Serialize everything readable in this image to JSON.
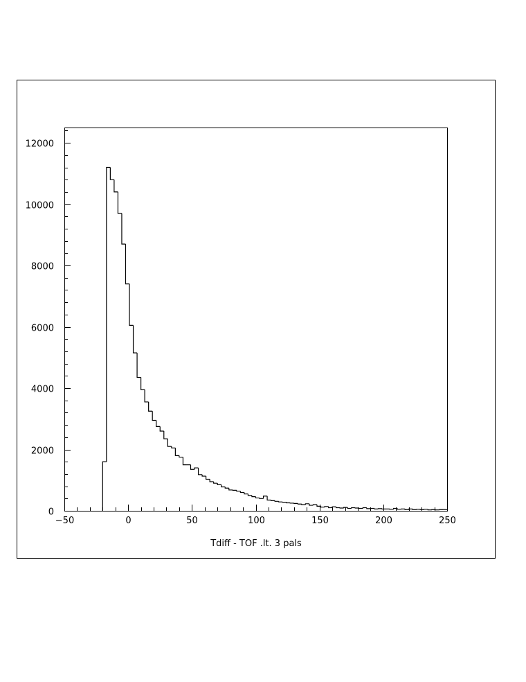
{
  "chart_data": {
    "type": "histogram",
    "title": "",
    "xlabel": "Tdiff - TOF .lt. 3 pals",
    "ylabel": "",
    "xlim": [
      -50,
      250
    ],
    "ylim": [
      0,
      12500
    ],
    "x_ticks": [
      -50,
      0,
      50,
      100,
      150,
      200,
      250
    ],
    "x_tick_labels": [
      "−50",
      "0",
      "50",
      "100",
      "150",
      "200",
      "250"
    ],
    "y_ticks": [
      0,
      2000,
      4000,
      6000,
      8000,
      10000,
      12000
    ],
    "y_tick_labels": [
      "0",
      "2000",
      "4000",
      "6000",
      "8000",
      "10000",
      "12000"
    ],
    "grid": false,
    "legend": "none",
    "bin_width": 3,
    "bin_edges_start": -20,
    "counts": [
      1600,
      11200,
      10800,
      10400,
      9700,
      8700,
      7400,
      6050,
      5150,
      4350,
      3950,
      3550,
      3250,
      2950,
      2750,
      2600,
      2350,
      2100,
      2050,
      1800,
      1750,
      1500,
      1500,
      1350,
      1400,
      1180,
      1130,
      1030,
      950,
      900,
      850,
      780,
      740,
      680,
      670,
      640,
      600,
      550,
      500,
      460,
      420,
      400,
      480,
      350,
      330,
      310,
      290,
      280,
      260,
      250,
      240,
      220,
      200,
      230,
      180,
      200,
      150,
      120,
      140,
      100,
      130,
      100,
      90,
      110,
      80,
      100,
      90,
      80,
      100,
      70,
      80,
      60,
      70,
      60,
      60,
      50,
      80,
      50,
      60,
      40,
      60,
      40,
      50,
      40,
      50,
      30,
      40,
      30,
      40,
      40
    ],
    "colors": {
      "line": "#000000",
      "frame": "#000000",
      "background": "#ffffff"
    }
  }
}
